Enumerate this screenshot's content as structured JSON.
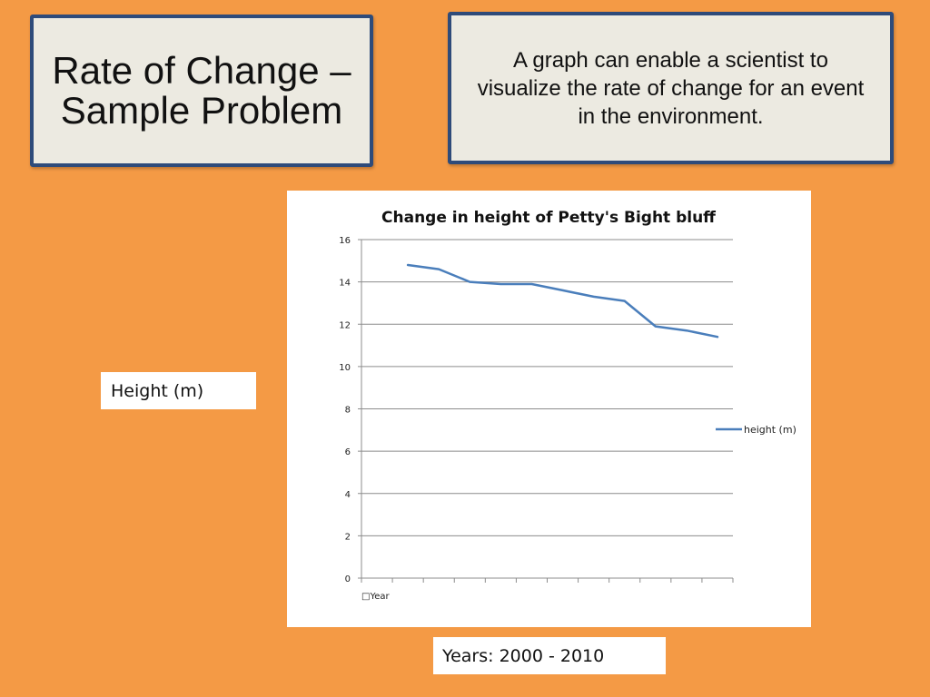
{
  "slide": {
    "title": "Rate of Change – Sample Problem",
    "description": "A graph can enable a scientist to visualize the rate of change for an event in the environment.",
    "y_axis_note": "Height (m)",
    "years_note": "Years: 2000 - 2010"
  },
  "colors": {
    "background": "#F49A45",
    "box_fill": "#ECEAE1",
    "box_border": "#2E4B7A",
    "series_line": "#4A7EBB"
  },
  "chart_data": {
    "type": "line",
    "title": "Change in height of Petty's Bight bluff",
    "xlabel": "□Year",
    "ylabel": "",
    "ylim": [
      0,
      16
    ],
    "y_ticks": [
      0,
      2,
      4,
      6,
      8,
      10,
      12,
      14,
      16
    ],
    "x_slots": 12,
    "grid": "horizontal",
    "legend_position": "right",
    "series": [
      {
        "name": "height (m)",
        "values": [
          14.8,
          14.6,
          14.0,
          13.9,
          13.9,
          13.6,
          13.3,
          13.1,
          11.9,
          11.7,
          11.4
        ]
      }
    ]
  }
}
